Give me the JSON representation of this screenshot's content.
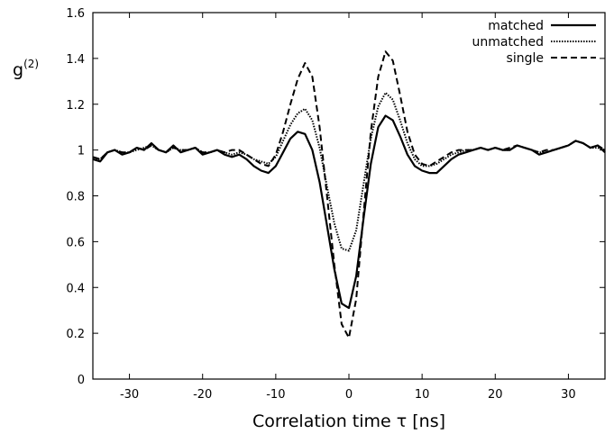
{
  "chart_data": {
    "type": "line",
    "title": "",
    "xlabel": "Correlation time τ [ns]",
    "ylabel": "g",
    "ylabel_superscript": "(2)",
    "xlim": [
      -35,
      35
    ],
    "ylim": [
      0,
      1.6
    ],
    "xticks": [
      -30,
      -20,
      -10,
      0,
      10,
      20,
      30
    ],
    "xtick_labels": [
      "-30",
      "-20",
      "-10",
      "0",
      "10",
      "20",
      "30"
    ],
    "yticks": [
      0,
      0.2,
      0.4,
      0.6,
      0.8,
      1,
      1.2,
      1.4,
      1.6
    ],
    "ytick_labels": [
      "0",
      "0.2",
      "0.4",
      "0.6",
      "0.8",
      "1",
      "1.2",
      "1.4",
      "1.6"
    ],
    "grid": false,
    "legend_position": "top-right",
    "x": [
      -35,
      -34,
      -33,
      -32,
      -31,
      -30,
      -29,
      -28,
      -27,
      -26,
      -25,
      -24,
      -23,
      -22,
      -21,
      -20,
      -19,
      -18,
      -17,
      -16,
      -15,
      -14,
      -13,
      -12,
      -11,
      -10,
      -9,
      -8,
      -7,
      -6,
      -5,
      -4,
      -3,
      -2,
      -1,
      0,
      1,
      2,
      3,
      4,
      5,
      6,
      7,
      8,
      9,
      10,
      11,
      12,
      13,
      14,
      15,
      16,
      17,
      18,
      19,
      20,
      21,
      22,
      23,
      24,
      25,
      26,
      27,
      28,
      29,
      30,
      31,
      32,
      33,
      34,
      35
    ],
    "series": [
      {
        "name": "matched",
        "style": "solid",
        "values": [
          0.96,
          0.95,
          0.99,
          1.0,
          0.98,
          0.99,
          1.01,
          1.0,
          1.03,
          1.0,
          0.99,
          1.02,
          0.99,
          1.0,
          1.01,
          0.98,
          0.99,
          1.0,
          0.98,
          0.97,
          0.98,
          0.96,
          0.93,
          0.91,
          0.9,
          0.93,
          0.99,
          1.05,
          1.08,
          1.07,
          1.0,
          0.86,
          0.67,
          0.48,
          0.33,
          0.31,
          0.45,
          0.7,
          0.94,
          1.1,
          1.15,
          1.13,
          1.06,
          0.98,
          0.93,
          0.91,
          0.9,
          0.9,
          0.93,
          0.96,
          0.98,
          0.99,
          1.0,
          1.01,
          1.0,
          1.01,
          1.0,
          1.0,
          1.02,
          1.01,
          1.0,
          0.98,
          0.99,
          1.0,
          1.01,
          1.02,
          1.04,
          1.03,
          1.01,
          1.02,
          0.99
        ]
      },
      {
        "name": "unmatched",
        "style": "dotted",
        "values": [
          0.96,
          0.96,
          0.99,
          1.0,
          0.99,
          0.99,
          1.0,
          1.01,
          1.02,
          1.0,
          0.99,
          1.01,
          1.0,
          1.0,
          1.01,
          0.99,
          0.99,
          1.0,
          0.99,
          0.98,
          0.99,
          0.98,
          0.96,
          0.95,
          0.94,
          0.97,
          1.04,
          1.11,
          1.16,
          1.18,
          1.13,
          1.01,
          0.84,
          0.68,
          0.57,
          0.56,
          0.65,
          0.85,
          1.05,
          1.19,
          1.25,
          1.22,
          1.13,
          1.03,
          0.96,
          0.93,
          0.93,
          0.94,
          0.96,
          0.98,
          0.99,
          1.0,
          1.0,
          1.01,
          1.0,
          1.01,
          1.0,
          1.0,
          1.02,
          1.01,
          1.0,
          0.99,
          0.99,
          1.0,
          1.01,
          1.02,
          1.04,
          1.03,
          1.01,
          1.01,
          1.0
        ]
      },
      {
        "name": "single",
        "style": "dashed",
        "values": [
          0.97,
          0.96,
          0.99,
          1.0,
          0.99,
          0.99,
          1.01,
          1.0,
          1.02,
          1.0,
          0.99,
          1.01,
          1.0,
          1.0,
          1.01,
          0.99,
          0.99,
          1.0,
          0.99,
          1.0,
          1.0,
          0.98,
          0.96,
          0.94,
          0.93,
          0.98,
          1.08,
          1.2,
          1.31,
          1.38,
          1.32,
          1.1,
          0.8,
          0.5,
          0.24,
          0.18,
          0.35,
          0.72,
          1.08,
          1.32,
          1.43,
          1.39,
          1.24,
          1.08,
          0.98,
          0.94,
          0.93,
          0.95,
          0.97,
          0.99,
          1.0,
          1.0,
          1.0,
          1.01,
          1.0,
          1.01,
          1.0,
          1.01,
          1.02,
          1.01,
          1.0,
          0.99,
          1.0,
          1.0,
          1.01,
          1.02,
          1.04,
          1.03,
          1.01,
          1.02,
          1.0
        ]
      }
    ]
  }
}
